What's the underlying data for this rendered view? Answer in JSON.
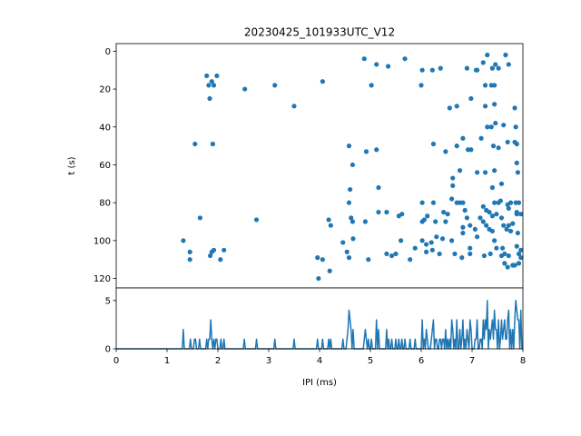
{
  "chart_data": [
    {
      "type": "scatter",
      "title": "20230425_101933UTC_V12",
      "xlabel": "",
      "ylabel": "t (s)",
      "xlim": [
        0,
        8
      ],
      "ylim": [
        125,
        -4
      ],
      "y_inverted": true,
      "yticks": [
        0,
        20,
        40,
        60,
        80,
        100,
        120
      ],
      "color": "#1f77b4",
      "points": [
        [
          1.78,
          13
        ],
        [
          1.88,
          16
        ],
        [
          1.92,
          18
        ],
        [
          1.98,
          13
        ],
        [
          1.82,
          18
        ],
        [
          1.84,
          25
        ],
        [
          2.53,
          20
        ],
        [
          3.12,
          18
        ],
        [
          3.5,
          29
        ],
        [
          4.06,
          16
        ],
        [
          1.55,
          49
        ],
        [
          1.9,
          49
        ],
        [
          1.65,
          88
        ],
        [
          2.76,
          89
        ],
        [
          1.32,
          100
        ],
        [
          1.45,
          106
        ],
        [
          1.45,
          110
        ],
        [
          1.85,
          108
        ],
        [
          1.88,
          106
        ],
        [
          1.92,
          105
        ],
        [
          2.05,
          110
        ],
        [
          2.12,
          105
        ],
        [
          3.96,
          109
        ],
        [
          4.06,
          110
        ],
        [
          3.98,
          120
        ],
        [
          4.2,
          116
        ],
        [
          4.18,
          89
        ],
        [
          4.22,
          92
        ],
        [
          4.46,
          101
        ],
        [
          4.54,
          106
        ],
        [
          4.58,
          109
        ],
        [
          4.58,
          80
        ],
        [
          4.6,
          73
        ],
        [
          4.58,
          50
        ],
        [
          4.65,
          60
        ],
        [
          4.62,
          88
        ],
        [
          4.65,
          90
        ],
        [
          4.66,
          99
        ],
        [
          4.88,
          4
        ],
        [
          5.02,
          18
        ],
        [
          5.12,
          7
        ],
        [
          5.35,
          8
        ],
        [
          5.68,
          4
        ],
        [
          4.92,
          53
        ],
        [
          5.12,
          52
        ],
        [
          5.16,
          72
        ],
        [
          5.16,
          85
        ],
        [
          5.32,
          85
        ],
        [
          4.9,
          90
        ],
        [
          4.96,
          110
        ],
        [
          5.32,
          107
        ],
        [
          5.42,
          108
        ],
        [
          5.5,
          107
        ],
        [
          5.56,
          87
        ],
        [
          5.62,
          86
        ],
        [
          5.6,
          100
        ],
        [
          5.78,
          110
        ],
        [
          5.88,
          104
        ],
        [
          6.02,
          10
        ],
        [
          6.0,
          18
        ],
        [
          6.22,
          10
        ],
        [
          6.38,
          9
        ],
        [
          6.56,
          30
        ],
        [
          6.7,
          29
        ],
        [
          6.24,
          49
        ],
        [
          6.48,
          53
        ],
        [
          6.7,
          50
        ],
        [
          6.82,
          46
        ],
        [
          6.92,
          52
        ],
        [
          6.98,
          52
        ],
        [
          6.76,
          63
        ],
        [
          6.02,
          80
        ],
        [
          6.06,
          89
        ],
        [
          6.02,
          90
        ],
        [
          6.12,
          87
        ],
        [
          6.24,
          80
        ],
        [
          6.28,
          90
        ],
        [
          6.44,
          85
        ],
        [
          6.48,
          90
        ],
        [
          6.52,
          86
        ],
        [
          6.62,
          67
        ],
        [
          6.62,
          71
        ],
        [
          6.6,
          78
        ],
        [
          6.7,
          80
        ],
        [
          6.76,
          80
        ],
        [
          6.82,
          80
        ],
        [
          6.86,
          84
        ],
        [
          6.9,
          88
        ],
        [
          6.96,
          92
        ],
        [
          6.02,
          100
        ],
        [
          6.1,
          102
        ],
        [
          6.2,
          101
        ],
        [
          6.3,
          98
        ],
        [
          6.42,
          99
        ],
        [
          6.1,
          106
        ],
        [
          6.22,
          105
        ],
        [
          6.36,
          107
        ],
        [
          6.6,
          100
        ],
        [
          6.66,
          107
        ],
        [
          6.82,
          96
        ],
        [
          6.96,
          104
        ],
        [
          6.96,
          107
        ],
        [
          6.82,
          93
        ],
        [
          6.8,
          109
        ],
        [
          6.9,
          9
        ],
        [
          7.08,
          10
        ],
        [
          7.1,
          10
        ],
        [
          7.22,
          6
        ],
        [
          7.3,
          2
        ],
        [
          7.4,
          9
        ],
        [
          7.46,
          7
        ],
        [
          7.52,
          9
        ],
        [
          7.66,
          2
        ],
        [
          7.72,
          7
        ],
        [
          7.26,
          18
        ],
        [
          7.38,
          18
        ],
        [
          7.44,
          18
        ],
        [
          6.98,
          25
        ],
        [
          7.26,
          29
        ],
        [
          7.44,
          28
        ],
        [
          7.3,
          40
        ],
        [
          7.38,
          40
        ],
        [
          7.46,
          38
        ],
        [
          7.62,
          39
        ],
        [
          7.18,
          46
        ],
        [
          7.42,
          50
        ],
        [
          7.52,
          51
        ],
        [
          7.7,
          48
        ],
        [
          7.26,
          64
        ],
        [
          7.44,
          63
        ],
        [
          7.1,
          64
        ],
        [
          7.4,
          72
        ],
        [
          7.58,
          70
        ],
        [
          7.22,
          82
        ],
        [
          7.28,
          84
        ],
        [
          7.34,
          85
        ],
        [
          7.4,
          87
        ],
        [
          7.44,
          80
        ],
        [
          7.48,
          86
        ],
        [
          7.52,
          80
        ],
        [
          7.56,
          79
        ],
        [
          7.58,
          88
        ],
        [
          7.16,
          88
        ],
        [
          7.22,
          90
        ],
        [
          7.06,
          94
        ],
        [
          7.1,
          98
        ],
        [
          7.28,
          92
        ],
        [
          7.34,
          94
        ],
        [
          7.4,
          95
        ],
        [
          7.44,
          100
        ],
        [
          7.62,
          92
        ],
        [
          7.68,
          94
        ],
        [
          7.7,
          81
        ],
        [
          7.72,
          83
        ],
        [
          7.76,
          80
        ],
        [
          7.76,
          95
        ],
        [
          7.72,
          92
        ],
        [
          7.6,
          104
        ],
        [
          7.24,
          108
        ],
        [
          7.36,
          107
        ],
        [
          7.48,
          104
        ],
        [
          7.58,
          108
        ],
        [
          7.64,
          107
        ],
        [
          7.72,
          108
        ],
        [
          7.64,
          112
        ],
        [
          7.7,
          114
        ],
        [
          7.8,
          113
        ],
        [
          7.84,
          30
        ],
        [
          7.86,
          40
        ],
        [
          7.84,
          48
        ],
        [
          7.88,
          49
        ],
        [
          7.88,
          59
        ],
        [
          7.9,
          64
        ],
        [
          7.86,
          80
        ],
        [
          7.88,
          85
        ],
        [
          7.92,
          80
        ],
        [
          7.8,
          91
        ],
        [
          7.88,
          86
        ],
        [
          7.9,
          96
        ],
        [
          7.88,
          103
        ],
        [
          7.92,
          107
        ],
        [
          7.92,
          112
        ],
        [
          7.96,
          109
        ],
        [
          7.96,
          105
        ],
        [
          7.96,
          86
        ],
        [
          7.84,
          113
        ]
      ]
    },
    {
      "type": "line",
      "title": "",
      "xlabel": "IPI (ms)",
      "ylabel": "",
      "xlim": [
        0,
        8
      ],
      "ylim": [
        0,
        6.3
      ],
      "xticks": [
        0,
        1,
        2,
        3,
        4,
        5,
        6,
        7,
        8
      ],
      "yticks": [
        0,
        5
      ],
      "color": "#1f77b4",
      "bin_width": 0.02,
      "counts": {
        "1.32": 2,
        "1.46": 1,
        "1.54": 1,
        "1.56": 1,
        "1.64": 1,
        "1.78": 1,
        "1.82": 1,
        "1.84": 1,
        "1.86": 3,
        "1.88": 1,
        "1.92": 1,
        "1.96": 1,
        "1.98": 1,
        "2.06": 1,
        "2.12": 1,
        "2.52": 1,
        "2.76": 1,
        "3.12": 1,
        "3.5": 1,
        "3.96": 1,
        "4.0": 1,
        "4.06": 1,
        "4.18": 1,
        "4.22": 1,
        "4.46": 1,
        "4.54": 1,
        "4.56": 2,
        "4.58": 4,
        "4.6": 3,
        "4.62": 2,
        "4.66": 2,
        "4.88": 1,
        "4.9": 2,
        "4.92": 1,
        "4.96": 1,
        "5.02": 1,
        "5.12": 3,
        "5.16": 2,
        "5.32": 2,
        "5.36": 1,
        "5.42": 1,
        "5.5": 1,
        "5.56": 1,
        "5.62": 1,
        "5.68": 1,
        "5.78": 1,
        "5.88": 1,
        "6.0": 2,
        "6.02": 3,
        "6.06": 1,
        "6.1": 2,
        "6.12": 1,
        "6.2": 1,
        "6.22": 2,
        "6.24": 3,
        "6.28": 1,
        "6.3": 1,
        "6.36": 1,
        "6.38": 1,
        "6.42": 1,
        "6.44": 1,
        "6.48": 2,
        "6.52": 1,
        "6.56": 1,
        "6.6": 3,
        "6.62": 2,
        "6.66": 1,
        "6.7": 3,
        "6.76": 2,
        "6.8": 1,
        "6.82": 3,
        "6.86": 1,
        "6.9": 2,
        "6.92": 1,
        "6.96": 3,
        "6.98": 2,
        "7.06": 1,
        "7.08": 1,
        "7.1": 3,
        "7.16": 1,
        "7.18": 1,
        "7.22": 3,
        "7.24": 1,
        "7.26": 3,
        "7.28": 2,
        "7.3": 5,
        "7.34": 2,
        "7.36": 1,
        "7.38": 2,
        "7.4": 3,
        "7.42": 1,
        "7.44": 4,
        "7.46": 2,
        "7.48": 2,
        "7.52": 3,
        "7.56": 1,
        "7.58": 3,
        "7.6": 1,
        "7.62": 2,
        "7.64": 3,
        "7.66": 1,
        "7.68": 1,
        "7.7": 3,
        "7.72": 4,
        "7.76": 2,
        "7.8": 2,
        "7.84": 3,
        "7.86": 5,
        "7.88": 4,
        "7.9": 3,
        "7.92": 3,
        "7.96": 4
      }
    }
  ]
}
